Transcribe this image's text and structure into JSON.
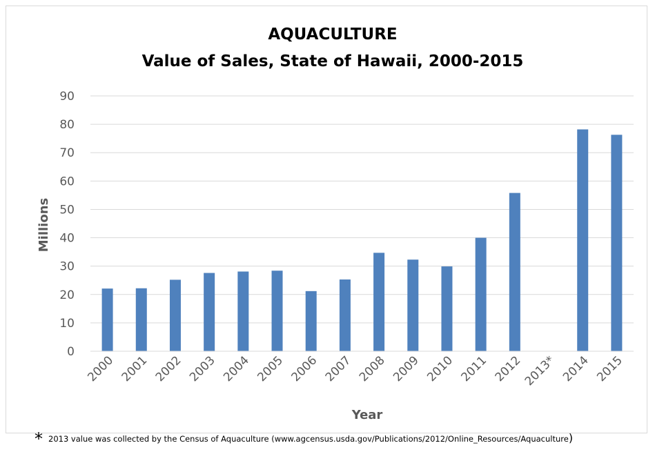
{
  "chart_data": {
    "type": "bar",
    "title": "AQUACULTURE",
    "subtitle": "Value of Sales, State of Hawaii, 2000-2015",
    "xlabel": "Year",
    "ylabel": "Millions",
    "ylim": [
      0,
      90
    ],
    "yticks": [
      0,
      10,
      20,
      30,
      40,
      50,
      60,
      70,
      80,
      90
    ],
    "grid": true,
    "categories": [
      "2000",
      "2001",
      "2002",
      "2003",
      "2004",
      "2005",
      "2006",
      "2007",
      "2008",
      "2009",
      "2010",
      "2011",
      "2012",
      "2013*",
      "2014",
      "2015"
    ],
    "values": [
      22.1,
      22.2,
      25.2,
      27.6,
      28.1,
      28.4,
      21.2,
      25.3,
      34.7,
      32.3,
      29.9,
      40.0,
      55.8,
      null,
      78.2,
      76.3
    ],
    "bar_color": "#4f81bd",
    "grid_color": "#d9d9d9"
  },
  "footnote": {
    "marker": "*",
    "text": "2013 value was collected by the Census of Aquaculture (www.agcensus.usda.gov/Publications/2012/Online_Resources/Aquaculture",
    "closing": ")"
  }
}
